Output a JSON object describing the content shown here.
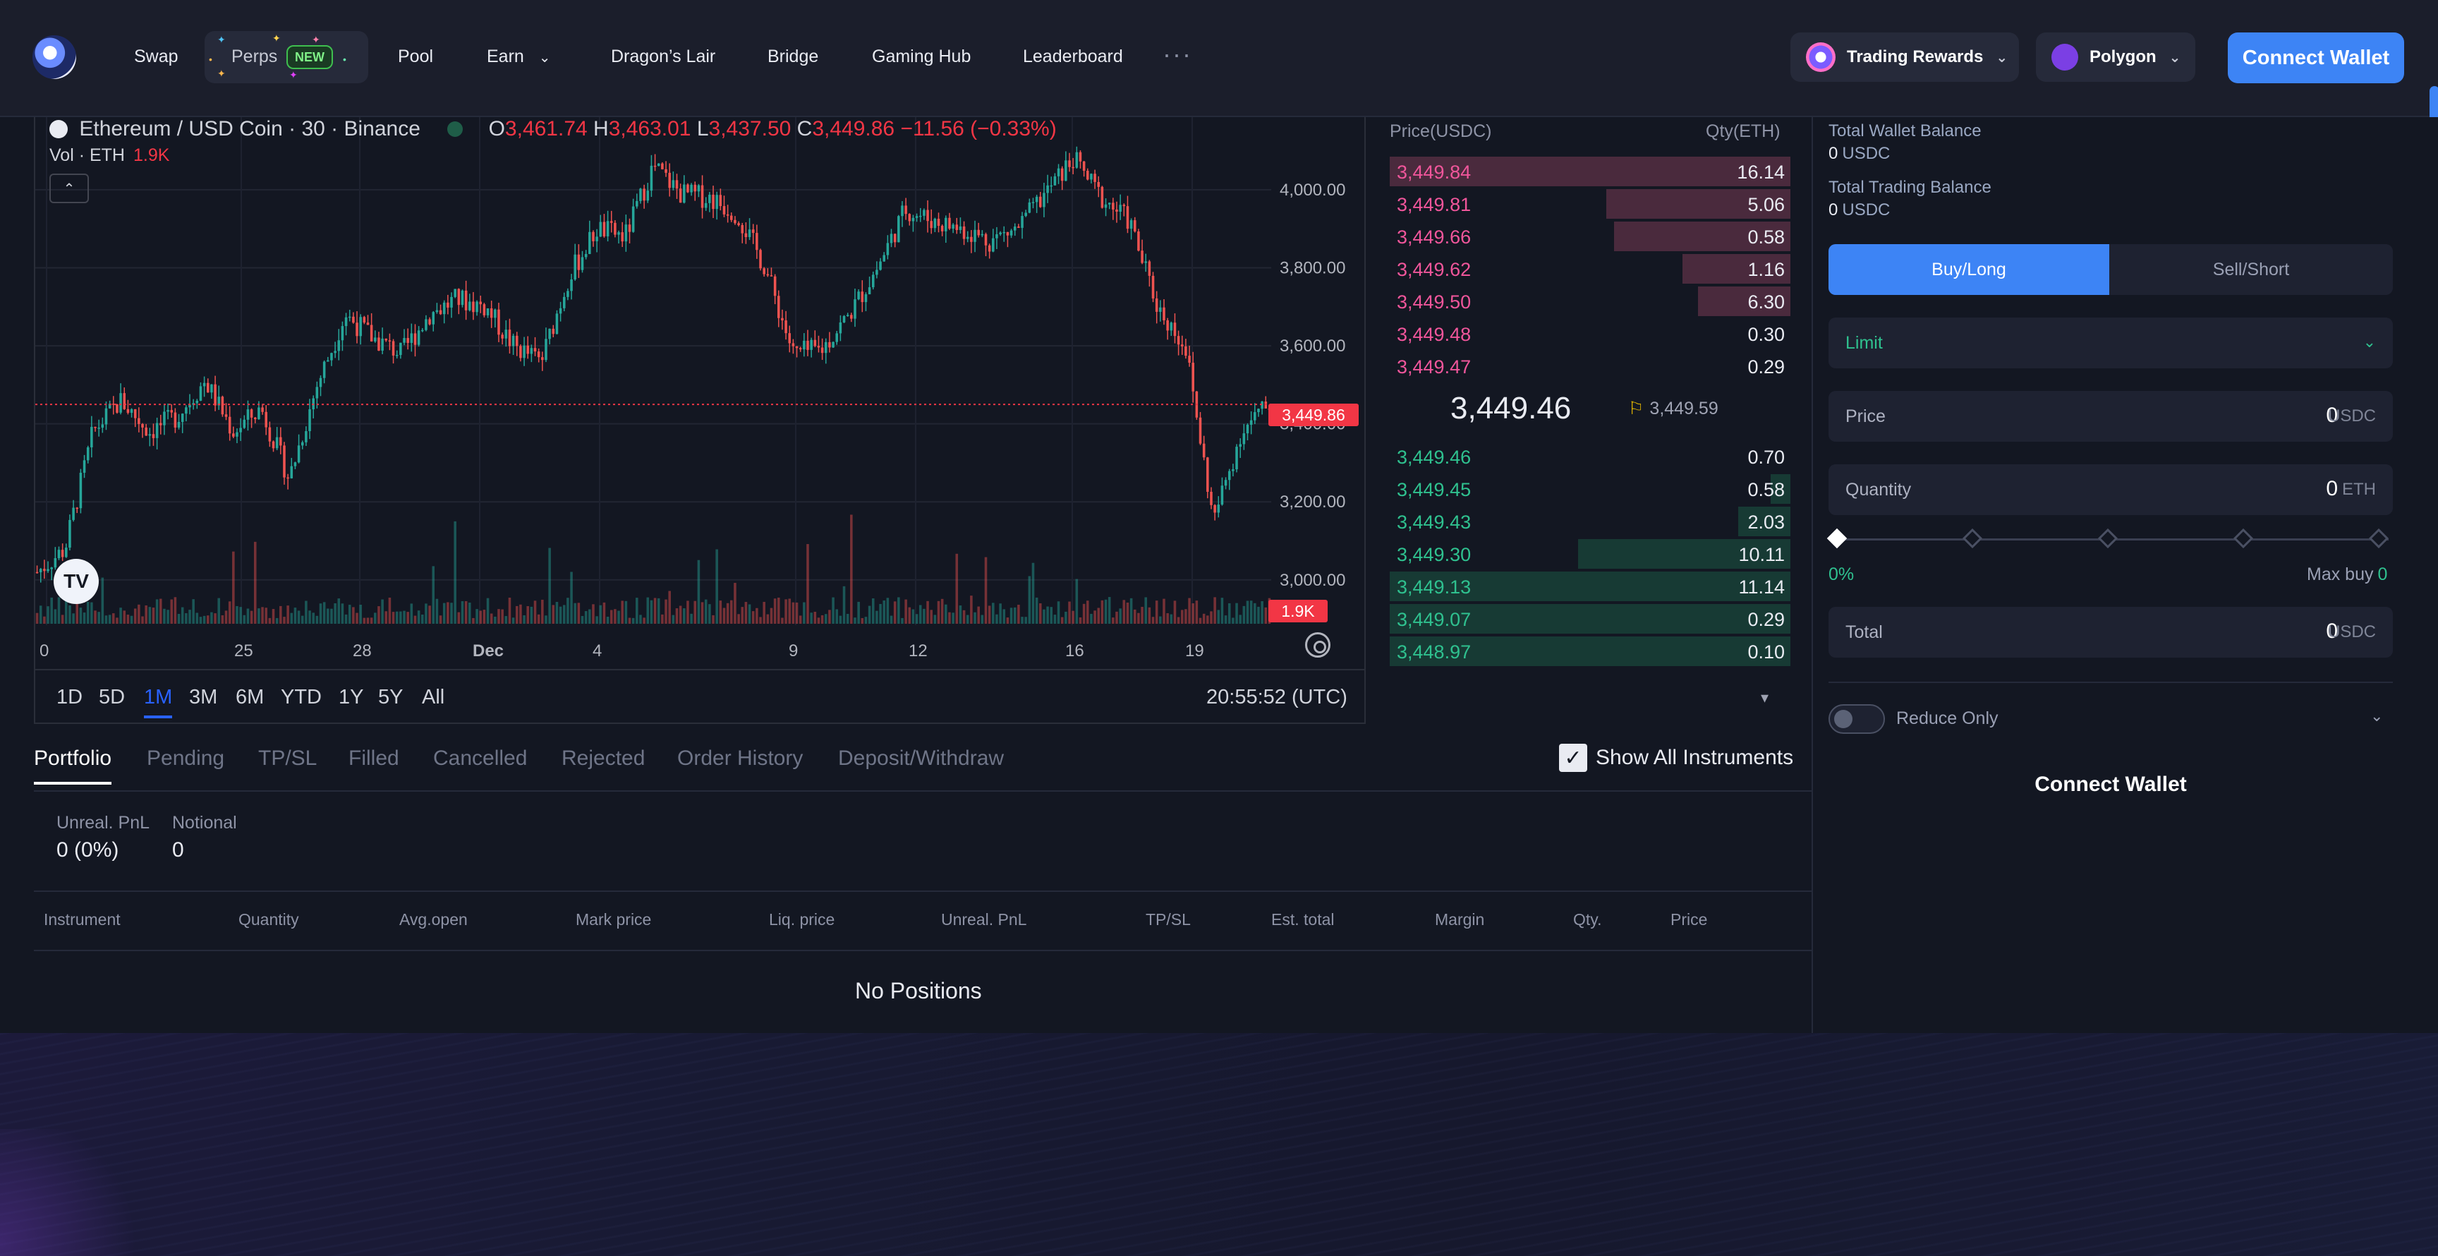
{
  "nav": {
    "items": [
      "Swap",
      "Perps",
      "Pool",
      "Earn",
      "Dragon’s Lair",
      "Bridge",
      "Gaming Hub",
      "Leaderboard"
    ],
    "new_badge": "NEW",
    "more": "···",
    "trading_rewards": "Trading Rewards",
    "network": "Polygon",
    "connect_wallet": "Connect Wallet"
  },
  "chart": {
    "symbol_line": "Ethereum / USD Coin · 30 · Binance",
    "ohlc": {
      "o_label": "O",
      "o": "3,461.74",
      "h_label": "H",
      "h": "3,463.01",
      "l_label": "L",
      "l": "3,437.50",
      "c_label": "C",
      "c": "3,449.86",
      "chg": "−11.56 (−0.33%)"
    },
    "vol_label": "Vol · ETH",
    "vol_value": "1.9K",
    "last_price_tag": "3,449.86",
    "vol_tag": "1.9K",
    "tv_logo": "TV",
    "clock": "20:55:52 (UTC)",
    "ranges": [
      "1D",
      "5D",
      "1M",
      "3M",
      "6M",
      "YTD",
      "1Y",
      "5Y",
      "All"
    ],
    "active_range": "1M",
    "colors": {
      "up": "#26a69a",
      "down": "#ef5350",
      "last": "#f23645"
    }
  },
  "chart_data": {
    "type": "candlestick",
    "title": "Ethereum / USD Coin · 30 · Binance",
    "x_ticks": [
      "0",
      "25",
      "28",
      "Dec",
      "4",
      "9",
      "12",
      "16",
      "19"
    ],
    "y_ticks": [
      "3,000.00",
      "3,200.00",
      "3,400.00",
      "3,600.00",
      "3,800.00",
      "4,000.00"
    ],
    "ylim": [
      2920,
      4150
    ],
    "last_price": 3449.86,
    "closes": [
      3020,
      3080,
      3380,
      3460,
      3380,
      3420,
      3510,
      3380,
      3440,
      3260,
      3500,
      3680,
      3620,
      3580,
      3680,
      3720,
      3700,
      3600,
      3560,
      3780,
      3900,
      3880,
      4060,
      3990,
      3980,
      3940,
      3800,
      3580,
      3590,
      3680,
      3800,
      3950,
      3920,
      3900,
      3870,
      3900,
      3990,
      4080,
      3980,
      3920,
      3700,
      3600,
      3150,
      3380,
      3450
    ]
  },
  "orderbook": {
    "price_header": "Price(USDC)",
    "qty_header": "Qty(ETH)",
    "asks": [
      {
        "price": "3,449.84",
        "qty": "16.14",
        "depth": 1.0
      },
      {
        "price": "3,449.81",
        "qty": "5.06",
        "depth": 0.46
      },
      {
        "price": "3,449.66",
        "qty": "0.58",
        "depth": 0.44
      },
      {
        "price": "3,449.62",
        "qty": "1.16",
        "depth": 0.27
      },
      {
        "price": "3,449.50",
        "qty": "6.30",
        "depth": 0.23
      },
      {
        "price": "3,449.48",
        "qty": "0.30",
        "depth": 0.0
      },
      {
        "price": "3,449.47",
        "qty": "0.29",
        "depth": 0.0
      }
    ],
    "mid_price": "3,449.46",
    "mark_price": "3,449.59",
    "bids": [
      {
        "price": "3,449.46",
        "qty": "0.70",
        "depth": 0.0
      },
      {
        "price": "3,449.45",
        "qty": "0.58",
        "depth": 0.05
      },
      {
        "price": "3,449.43",
        "qty": "2.03",
        "depth": 0.13
      },
      {
        "price": "3,449.30",
        "qty": "10.11",
        "depth": 0.53
      },
      {
        "price": "3,449.13",
        "qty": "11.14",
        "depth": 1.0
      },
      {
        "price": "3,449.07",
        "qty": "0.29",
        "depth": 1.0
      },
      {
        "price": "3,448.97",
        "qty": "0.10",
        "depth": 1.0
      }
    ]
  },
  "panel": {
    "total_wallet_label": "Total Wallet Balance",
    "total_wallet_value": "0",
    "total_trading_label": "Total Trading Balance",
    "total_trading_value": "0",
    "currency": "USDC",
    "buy_tab": "Buy/Long",
    "sell_tab": "Sell/Short",
    "order_type": "Limit",
    "price_label": "Price",
    "price_value": "0",
    "price_unit": "USDC",
    "qty_label": "Quantity",
    "qty_value": "0",
    "qty_unit": "ETH",
    "slider_pct": "0%",
    "max_buy_label": "Max buy",
    "max_buy_value": "0",
    "total_label": "Total",
    "total_value": "0",
    "total_unit": "USDC",
    "reduce_only": "Reduce Only",
    "connect_wallet": "Connect Wallet"
  },
  "bottom": {
    "tabs": [
      "Portfolio",
      "Pending",
      "TP/SL",
      "Filled",
      "Cancelled",
      "Rejected",
      "Order History",
      "Deposit/Withdraw"
    ],
    "show_all": "Show All Instruments",
    "unreal_label": "Unreal. PnL",
    "unreal_value": "0 (0%)",
    "notional_label": "Notional",
    "notional_value": "0",
    "columns": [
      "Instrument",
      "Quantity",
      "Avg.open",
      "Mark price",
      "Liq. price",
      "Unreal. PnL",
      "TP/SL",
      "Est. total",
      "Margin",
      "Qty.",
      "Price"
    ],
    "empty": "No Positions"
  }
}
